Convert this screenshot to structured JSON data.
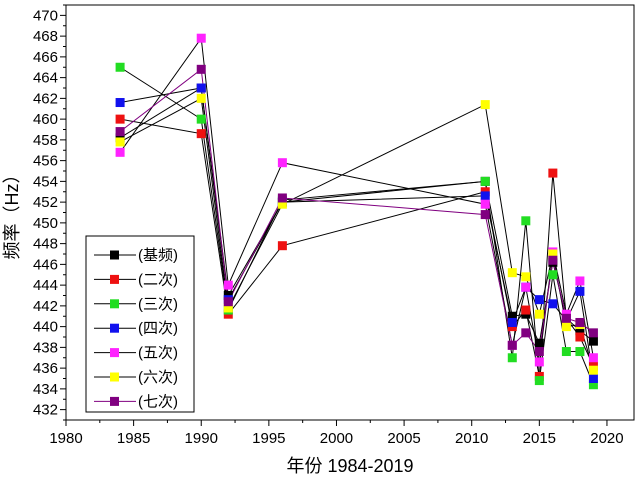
{
  "chart_data": {
    "type": "line",
    "title": "",
    "xlabel": "年份 1984-2019",
    "ylabel": "频率（Hz）",
    "xlim": [
      1980,
      2022
    ],
    "ylim": [
      431,
      471
    ],
    "x_ticks": [
      1980,
      1985,
      1990,
      1995,
      2000,
      2005,
      2010,
      2015,
      2020
    ],
    "y_ticks": [
      432,
      434,
      436,
      438,
      440,
      442,
      444,
      446,
      448,
      450,
      452,
      454,
      456,
      458,
      460,
      462,
      464,
      466,
      468,
      470
    ],
    "legend_position": "bottom-left",
    "series": [
      {
        "name": "(基频)",
        "color": "#000000",
        "line_color": "#000000",
        "points": [
          [
            1984,
            458.2
          ],
          [
            1990,
            463.0
          ],
          [
            1992,
            443.0
          ],
          [
            1996,
            452.0
          ],
          [
            2011,
            454.0
          ],
          [
            2013,
            441.0
          ],
          [
            2014,
            441.2
          ],
          [
            2015,
            438.4
          ],
          [
            2016,
            446.2
          ],
          [
            2017,
            440.8
          ],
          [
            2018,
            439.6
          ],
          [
            2019,
            438.6
          ]
        ]
      },
      {
        "name": "(二次)",
        "color": "#ee1111",
        "line_color": "#000000",
        "points": [
          [
            1984,
            460.0
          ],
          [
            1990,
            458.6
          ],
          [
            1992,
            441.2
          ],
          [
            1996,
            447.8
          ],
          [
            2011,
            453.0
          ],
          [
            2013,
            440.0
          ],
          [
            2014,
            441.6
          ],
          [
            2015,
            435.2
          ],
          [
            2016,
            454.8
          ],
          [
            2017,
            440.8
          ],
          [
            2018,
            439.0
          ],
          [
            2019,
            436.2
          ]
        ]
      },
      {
        "name": "(三次)",
        "color": "#22dd22",
        "line_color": "#000000",
        "points": [
          [
            1984,
            465.0
          ],
          [
            1990,
            460.0
          ],
          [
            1992,
            441.6
          ],
          [
            1996,
            452.2
          ],
          [
            2011,
            454.0
          ],
          [
            2013,
            437.0
          ],
          [
            2014,
            450.2
          ],
          [
            2015,
            434.8
          ],
          [
            2016,
            445.0
          ],
          [
            2017,
            437.6
          ],
          [
            2018,
            437.6
          ],
          [
            2019,
            434.4
          ]
        ]
      },
      {
        "name": "(四次)",
        "color": "#1111ee",
        "line_color": "#000000",
        "points": [
          [
            1984,
            461.6
          ],
          [
            1990,
            463.0
          ],
          [
            1992,
            442.6
          ],
          [
            1996,
            452.0
          ],
          [
            2011,
            452.6
          ],
          [
            2013,
            440.4
          ],
          [
            2014,
            443.8
          ],
          [
            2015,
            442.6
          ],
          [
            2016,
            442.2
          ],
          [
            2017,
            440.6
          ],
          [
            2018,
            443.4
          ],
          [
            2019,
            435.0
          ]
        ]
      },
      {
        "name": "(五次)",
        "color": "#ff22ff",
        "line_color": "#000000",
        "points": [
          [
            1984,
            456.8
          ],
          [
            1990,
            467.8
          ],
          [
            1992,
            444.0
          ],
          [
            1996,
            455.8
          ],
          [
            2011,
            451.8
          ],
          [
            2013,
            438.2
          ],
          [
            2014,
            443.8
          ],
          [
            2015,
            436.6
          ],
          [
            2016,
            447.2
          ],
          [
            2017,
            441.2
          ],
          [
            2018,
            444.4
          ],
          [
            2019,
            437.0
          ]
        ]
      },
      {
        "name": "(六次)",
        "color": "#ffff00",
        "line_color": "#000000",
        "points": [
          [
            1984,
            457.8
          ],
          [
            1990,
            462.0
          ],
          [
            1992,
            441.8
          ],
          [
            1996,
            451.8
          ],
          [
            2011,
            461.4
          ],
          [
            2013,
            445.2
          ],
          [
            2014,
            444.8
          ],
          [
            2015,
            441.2
          ],
          [
            2016,
            447.0
          ],
          [
            2017,
            440.0
          ],
          [
            2018,
            440.2
          ],
          [
            2019,
            435.8
          ]
        ]
      },
      {
        "name": "(七次)",
        "color": "#800080",
        "line_color": "#800080",
        "points": [
          [
            1984,
            458.8
          ],
          [
            1990,
            464.8
          ],
          [
            1992,
            442.4
          ],
          [
            1996,
            452.4
          ],
          [
            2011,
            450.8
          ],
          [
            2013,
            438.2
          ],
          [
            2014,
            439.4
          ],
          [
            2015,
            437.6
          ],
          [
            2016,
            446.4
          ],
          [
            2017,
            440.8
          ],
          [
            2018,
            440.4
          ],
          [
            2019,
            439.4
          ]
        ]
      }
    ]
  }
}
